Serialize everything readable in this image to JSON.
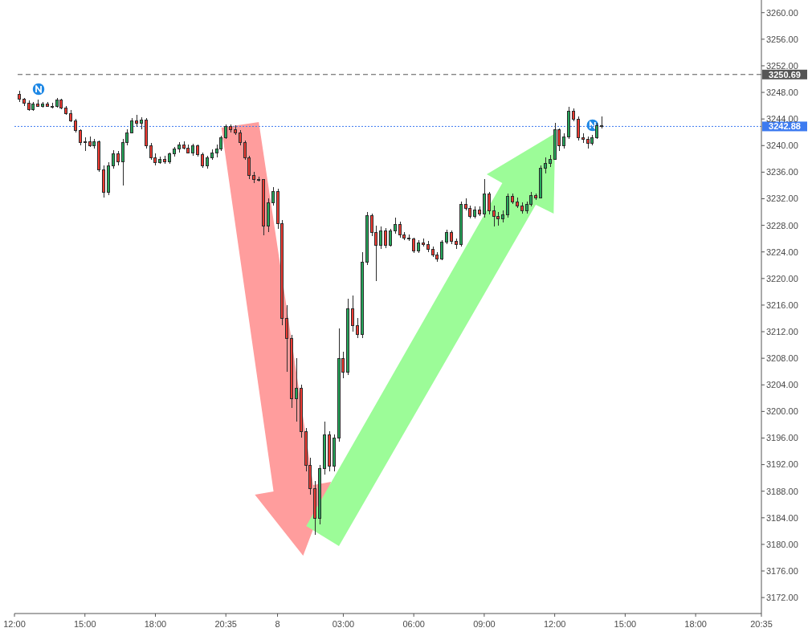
{
  "chart_data": {
    "type": "candlestick",
    "categories": [
      "12:00",
      null,
      null,
      null,
      null,
      null,
      null,
      null,
      null,
      null,
      null,
      null,
      null,
      null,
      null,
      "15:00",
      null,
      null,
      null,
      null,
      null,
      null,
      null,
      null,
      null,
      null,
      null,
      null,
      null,
      null,
      "18:00",
      null,
      null,
      null,
      null,
      null,
      null,
      null,
      null,
      null,
      null,
      null,
      null,
      null,
      null,
      "20:35",
      null,
      null,
      null,
      null,
      null,
      null,
      null,
      null,
      null,
      null,
      "8",
      null,
      null,
      null,
      null,
      null,
      null,
      null,
      null,
      null,
      null,
      null,
      null,
      null,
      "03:00",
      null,
      null,
      null,
      null,
      null,
      null,
      null,
      null,
      null,
      null,
      null,
      null,
      null,
      null,
      "06:00",
      null,
      null,
      null,
      null,
      null,
      null,
      null,
      null,
      null,
      null,
      null,
      null,
      null,
      null,
      "09:00",
      null,
      null,
      null,
      null,
      null,
      null,
      null,
      null,
      null,
      null,
      null,
      null,
      null,
      null,
      "12:00",
      null,
      null,
      null,
      null,
      null,
      null,
      null,
      null,
      null,
      null,
      null,
      null,
      null,
      null,
      "15:00",
      null,
      null,
      null,
      null,
      null,
      null,
      null,
      null,
      null,
      null,
      null,
      null,
      null,
      null,
      "18:00",
      null,
      null,
      null,
      null,
      null,
      null,
      null,
      null,
      null,
      null,
      null,
      null,
      null,
      "20:35"
    ],
    "ohlc": [
      null,
      [
        3247.8,
        3248.2,
        3246.6,
        3247.0
      ],
      [
        3247.0,
        3247.2,
        3246.0,
        3246.4
      ],
      [
        3246.4,
        3246.8,
        3245.2,
        3245.5
      ],
      [
        3245.5,
        3246.6,
        3245.2,
        3246.3
      ],
      [
        3246.3,
        3246.9,
        3245.8,
        3246.0
      ],
      [
        3246.0,
        3246.5,
        3245.7,
        3246.3
      ],
      [
        3246.3,
        3246.6,
        3245.8,
        3246.0
      ],
      [
        3246.0,
        3246.4,
        3245.6,
        3245.9
      ],
      [
        3245.9,
        3247.2,
        3245.7,
        3246.9
      ],
      [
        3246.9,
        3247.1,
        3245.5,
        3245.7
      ],
      [
        3245.7,
        3245.9,
        3244.6,
        3244.9
      ],
      [
        3244.9,
        3245.3,
        3243.5,
        3243.8
      ],
      [
        3243.8,
        3244.0,
        3242.0,
        3242.3
      ],
      [
        3242.3,
        3242.5,
        3240.0,
        3240.5
      ],
      [
        3240.5,
        3241.2,
        3239.2,
        3240.6
      ],
      [
        3240.6,
        3241.4,
        3239.8,
        3240.0
      ],
      [
        3240.0,
        3241.0,
        3239.5,
        3240.6
      ],
      [
        3240.6,
        3240.8,
        3236.0,
        3236.4
      ],
      [
        3236.4,
        3237.0,
        3232.2,
        3233.0
      ],
      [
        3233.0,
        3237.5,
        3232.5,
        3237.0
      ],
      [
        3237.0,
        3239.3,
        3236.5,
        3238.8
      ],
      [
        3238.8,
        3239.2,
        3237.0,
        3237.6
      ],
      [
        3237.6,
        3241.0,
        3234.0,
        3240.5
      ],
      [
        3240.5,
        3242.5,
        3240.0,
        3242.0
      ],
      [
        3242.0,
        3244.2,
        3241.8,
        3243.8
      ],
      [
        3243.8,
        3244.6,
        3242.8,
        3243.4
      ],
      [
        3243.4,
        3244.3,
        3242.5,
        3243.9
      ],
      [
        3243.9,
        3244.1,
        3239.5,
        3240.0
      ],
      [
        3240.0,
        3240.4,
        3237.8,
        3238.2
      ],
      [
        3238.2,
        3238.8,
        3237.0,
        3237.5
      ],
      [
        3237.5,
        3238.4,
        3237.2,
        3238.0
      ],
      [
        3238.0,
        3238.5,
        3237.3,
        3237.6
      ],
      [
        3237.6,
        3239.0,
        3237.3,
        3238.8
      ],
      [
        3238.8,
        3239.8,
        3238.4,
        3239.5
      ],
      [
        3239.5,
        3240.5,
        3239.0,
        3240.2
      ],
      [
        3240.2,
        3240.6,
        3239.4,
        3239.7
      ],
      [
        3239.7,
        3240.2,
        3238.8,
        3239.0
      ],
      [
        3239.0,
        3240.3,
        3238.5,
        3240.0
      ],
      [
        3240.0,
        3240.2,
        3238.4,
        3238.7
      ],
      [
        3238.7,
        3238.9,
        3236.6,
        3237.0
      ],
      [
        3237.0,
        3238.5,
        3236.5,
        3238.2
      ],
      [
        3238.2,
        3239.4,
        3237.8,
        3239.0
      ],
      [
        3239.0,
        3240.2,
        3238.2,
        3239.6
      ],
      [
        3239.6,
        3241.5,
        3239.2,
        3241.2
      ],
      [
        3241.2,
        3243.2,
        3241.0,
        3242.9
      ],
      [
        3242.9,
        3243.2,
        3242.0,
        3242.4
      ],
      [
        3242.4,
        3243.0,
        3241.6,
        3242.0
      ],
      [
        3242.0,
        3242.3,
        3240.0,
        3240.5
      ],
      [
        3240.5,
        3240.8,
        3237.8,
        3238.2
      ],
      [
        3238.2,
        3238.5,
        3235.0,
        3235.6
      ],
      [
        3235.6,
        3236.0,
        3234.4,
        3235.0
      ],
      [
        3235.0,
        3235.3,
        3234.6,
        3234.9
      ],
      [
        3234.9,
        3235.0,
        3226.5,
        3228.0
      ],
      [
        3228.0,
        3232.0,
        3227.0,
        3231.5
      ],
      [
        3231.5,
        3233.8,
        3231.0,
        3233.2
      ],
      [
        3233.2,
        3233.5,
        3227.5,
        3228.3
      ],
      [
        3228.3,
        3228.8,
        3213.0,
        3214.0
      ],
      [
        3214.0,
        3216.0,
        3206.0,
        3211.0
      ],
      [
        3211.0,
        3211.5,
        3200.5,
        3202.0
      ],
      [
        3202.0,
        3208.0,
        3198.5,
        3203.5
      ],
      [
        3203.5,
        3204.0,
        3196.0,
        3197.0
      ],
      [
        3197.0,
        3197.5,
        3191.0,
        3192.0
      ],
      [
        3192.0,
        3193.0,
        3187.5,
        3188.5
      ],
      [
        3188.5,
        3189.5,
        3181.4,
        3184.0
      ],
      [
        3184.0,
        3192.0,
        3183.0,
        3191.5
      ],
      [
        3191.5,
        3198.5,
        3190.5,
        3196.5
      ],
      [
        3196.5,
        3197.0,
        3191.0,
        3191.8
      ],
      [
        3191.8,
        3196.5,
        3191.0,
        3196.0
      ],
      [
        3196.0,
        3212.5,
        3195.5,
        3208.0
      ],
      [
        3208.0,
        3209.0,
        3205.0,
        3206.0
      ],
      [
        3206.0,
        3217.0,
        3205.5,
        3215.5
      ],
      [
        3215.5,
        3217.5,
        3212.0,
        3213.0
      ],
      [
        3213.0,
        3214.0,
        3211.0,
        3211.6
      ],
      [
        3211.6,
        3224.0,
        3211.0,
        3222.5
      ],
      [
        3222.5,
        3230.0,
        3222.0,
        3229.5
      ],
      [
        3229.5,
        3229.8,
        3226.4,
        3227.0
      ],
      [
        3227.0,
        3228.0,
        3219.6,
        3225.0
      ],
      [
        3225.0,
        3227.8,
        3224.4,
        3227.2
      ],
      [
        3227.2,
        3227.6,
        3224.6,
        3225.0
      ],
      [
        3225.0,
        3227.5,
        3224.8,
        3227.2
      ],
      [
        3227.2,
        3229.2,
        3226.8,
        3228.2
      ],
      [
        3228.2,
        3228.6,
        3226.2,
        3226.6
      ],
      [
        3226.6,
        3227.0,
        3225.8,
        3226.2
      ],
      [
        3226.2,
        3226.6,
        3225.6,
        3226.0
      ],
      [
        3226.0,
        3226.2,
        3223.8,
        3224.2
      ],
      [
        3224.2,
        3225.8,
        3223.8,
        3225.4
      ],
      [
        3225.4,
        3226.0,
        3224.8,
        3225.2
      ],
      [
        3225.2,
        3225.6,
        3224.0,
        3224.4
      ],
      [
        3224.4,
        3224.8,
        3223.2,
        3223.6
      ],
      [
        3223.6,
        3224.0,
        3222.5,
        3223.0
      ],
      [
        3223.0,
        3225.8,
        3222.8,
        3225.5
      ],
      [
        3225.5,
        3227.4,
        3225.2,
        3227.0
      ],
      [
        3227.0,
        3227.2,
        3225.2,
        3225.6
      ],
      [
        3225.6,
        3226.0,
        3224.5,
        3225.2
      ],
      [
        3225.2,
        3231.6,
        3224.8,
        3231.2
      ],
      [
        3231.2,
        3232.0,
        3230.2,
        3230.6
      ],
      [
        3230.6,
        3231.0,
        3229.0,
        3229.4
      ],
      [
        3229.4,
        3230.8,
        3229.0,
        3230.4
      ],
      [
        3230.4,
        3230.8,
        3229.4,
        3229.8
      ],
      [
        3229.8,
        3235.0,
        3229.2,
        3232.8
      ],
      [
        3232.8,
        3233.0,
        3229.6,
        3230.2
      ],
      [
        3230.2,
        3231.0,
        3227.8,
        3229.4
      ],
      [
        3229.4,
        3230.0,
        3228.0,
        3229.0
      ],
      [
        3229.0,
        3230.2,
        3228.4,
        3229.6
      ],
      [
        3229.6,
        3232.8,
        3229.2,
        3232.4
      ],
      [
        3232.4,
        3232.8,
        3231.2,
        3231.6
      ],
      [
        3231.6,
        3232.2,
        3230.6,
        3231.0
      ],
      [
        3231.0,
        3231.4,
        3229.8,
        3230.2
      ],
      [
        3230.2,
        3231.6,
        3229.8,
        3231.2
      ],
      [
        3231.2,
        3233.0,
        3230.8,
        3232.6
      ],
      [
        3232.6,
        3232.8,
        3231.8,
        3232.2
      ],
      [
        3232.2,
        3237.0,
        3232.0,
        3236.6
      ],
      [
        3236.6,
        3238.2,
        3235.8,
        3237.4
      ],
      [
        3237.4,
        3238.6,
        3236.8,
        3238.0
      ],
      [
        3238.0,
        3243.4,
        3237.8,
        3242.4
      ],
      [
        3242.4,
        3242.6,
        3239.2,
        3240.0
      ],
      [
        3240.0,
        3241.8,
        3239.6,
        3241.4
      ],
      [
        3241.4,
        3245.8,
        3241.0,
        3245.2
      ],
      [
        3245.2,
        3245.6,
        3243.6,
        3244.0
      ],
      [
        3244.0,
        3244.4,
        3240.8,
        3241.2
      ],
      [
        3241.2,
        3241.8,
        3240.4,
        3241.0
      ],
      [
        3241.0,
        3241.4,
        3239.6,
        3240.4
      ],
      [
        3240.4,
        3241.6,
        3240.0,
        3241.2
      ],
      [
        3241.2,
        3243.4,
        3241.0,
        3243.0
      ],
      [
        3243.0,
        3244.4,
        3242.6,
        3242.88
      ],
      null,
      null,
      null,
      null,
      null,
      null,
      null,
      null,
      null,
      null,
      null,
      null,
      null,
      null,
      null,
      null,
      null,
      null,
      null,
      null,
      null,
      null,
      null,
      null,
      null,
      null,
      null,
      null,
      null,
      null,
      null,
      null,
      null,
      null
    ],
    "colors": [
      null,
      "#ee3b33",
      "#ee3b33",
      "#ee3b33",
      "#26a65b",
      "#ee3b33",
      "#26a65b",
      "#ee3b33",
      "#ee3b33",
      "#26a65b",
      "#ee3b33",
      "#ee3b33",
      "#ee3b33",
      "#ee3b33",
      "#ee3b33",
      "#26a65b",
      "#ee3b33",
      "#26a65b",
      "#ee3b33",
      "#ee3b33",
      "#26a65b",
      "#26a65b",
      "#ee3b33",
      "#26a65b",
      "#26a65b",
      "#26a65b",
      "#ee3b33",
      "#26a65b",
      "#ee3b33",
      "#ee3b33",
      "#ee3b33",
      "#26a65b",
      "#ee3b33",
      "#26a65b",
      "#26a65b",
      "#26a65b",
      "#ee3b33",
      "#ee3b33",
      "#26a65b",
      "#ee3b33",
      "#ee3b33",
      "#26a65b",
      "#26a65b",
      "#26a65b",
      "#26a65b",
      "#26a65b",
      "#ee3b33",
      "#ee3b33",
      "#ee3b33",
      "#ee3b33",
      "#ee3b33",
      "#ee3b33",
      "#ee3b33",
      "#ee3b33",
      "#26a65b",
      "#26a65b",
      "#ee3b33",
      "#ee3b33",
      "#ee3b33",
      "#ee3b33",
      "#26a65b",
      "#ee3b33",
      "#ee3b33",
      "#ee3b33",
      "#ee3b33",
      "#26a65b",
      "#26a65b",
      "#ee3b33",
      "#26a65b",
      "#26a65b",
      "#ee3b33",
      "#26a65b",
      "#ee3b33",
      "#ee3b33",
      "#26a65b",
      "#26a65b",
      "#ee3b33",
      "#ee3b33",
      "#26a65b",
      "#ee3b33",
      "#26a65b",
      "#26a65b",
      "#ee3b33",
      "#ee3b33",
      "#ee3b33",
      "#ee3b33",
      "#26a65b",
      "#ee3b33",
      "#ee3b33",
      "#ee3b33",
      "#ee3b33",
      "#26a65b",
      "#26a65b",
      "#ee3b33",
      "#ee3b33",
      "#26a65b",
      "#ee3b33",
      "#ee3b33",
      "#26a65b",
      "#ee3b33",
      "#26a65b",
      "#ee3b33",
      "#ee3b33",
      "#ee3b33",
      "#26a65b",
      "#26a65b",
      "#ee3b33",
      "#ee3b33",
      "#ee3b33",
      "#26a65b",
      "#26a65b",
      "#ee3b33",
      "#26a65b",
      "#26a65b",
      "#26a65b",
      "#26a65b",
      "#ee3b33",
      "#26a65b",
      "#26a65b",
      "#ee3b33",
      "#ee3b33",
      "#ee3b33",
      "#ee3b33",
      "#26a65b",
      "#26a65b",
      "#ee3b33",
      null,
      null,
      null,
      null,
      null,
      null,
      null,
      null,
      null,
      null,
      null,
      null,
      null,
      null,
      null,
      null,
      null,
      null,
      null,
      null,
      null,
      null,
      null,
      null,
      null,
      null,
      null,
      null,
      null,
      null,
      null,
      null,
      null,
      null
    ],
    "ylim": [
      3169.6,
      3261.9
    ],
    "yticks": [
      {
        "value": 3172,
        "label": "3172.00"
      },
      {
        "value": 3176,
        "label": "3176.00"
      },
      {
        "value": 3180,
        "label": "3180.00"
      },
      {
        "value": 3184,
        "label": "3184.00"
      },
      {
        "value": 3188,
        "label": "3188.00"
      },
      {
        "value": 3192,
        "label": "3192.00"
      },
      {
        "value": 3196,
        "label": "3196.00"
      },
      {
        "value": 3200,
        "label": "3200.00"
      },
      {
        "value": 3204,
        "label": "3204.00"
      },
      {
        "value": 3208,
        "label": "3208.00"
      },
      {
        "value": 3212,
        "label": "3212.00"
      },
      {
        "value": 3216,
        "label": "3216.00"
      },
      {
        "value": 3220,
        "label": "3220.00"
      },
      {
        "value": 3224,
        "label": "3224.00"
      },
      {
        "value": 3228,
        "label": "3228.00"
      },
      {
        "value": 3232,
        "label": "3232.00"
      },
      {
        "value": 3236,
        "label": "3236.00"
      },
      {
        "value": 3240,
        "label": "3240.00"
      },
      {
        "value": 3244,
        "label": "3244.00"
      },
      {
        "value": 3248,
        "label": "3248.00"
      },
      {
        "value": 3252,
        "label": "3252.00"
      },
      {
        "value": 3256,
        "label": "3256.00"
      },
      {
        "value": 3260,
        "label": "3260.00"
      }
    ],
    "ref_lines": [
      {
        "axis": "y",
        "value": 3250.69,
        "label": "3250.69",
        "color": "#555555",
        "line_style": "dashed"
      },
      {
        "axis": "y",
        "value": 3242.88,
        "label": "3242.88",
        "color": "#3d7bf0",
        "line_style": "dotted"
      }
    ]
  }
}
